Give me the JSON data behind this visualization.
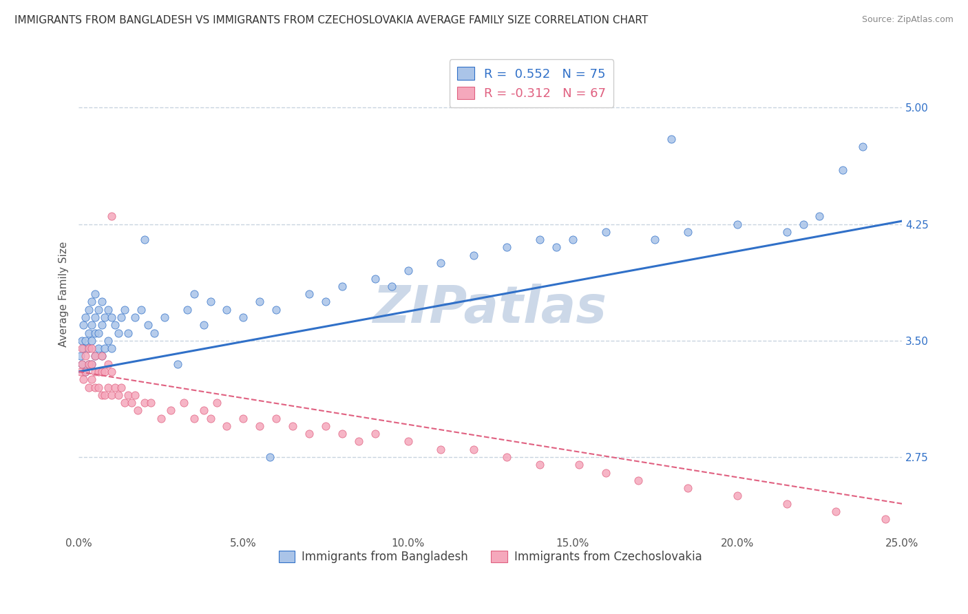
{
  "title": "IMMIGRANTS FROM BANGLADESH VS IMMIGRANTS FROM CZECHOSLOVAKIA AVERAGE FAMILY SIZE CORRELATION CHART",
  "source": "Source: ZipAtlas.com",
  "ylabel": "Average Family Size",
  "xlim": [
    0.0,
    0.25
  ],
  "ylim": [
    2.25,
    5.35
  ],
  "yticks": [
    2.75,
    3.5,
    4.25,
    5.0
  ],
  "xticks": [
    0.0,
    0.05,
    0.1,
    0.15,
    0.2,
    0.25
  ],
  "xticklabels": [
    "0.0%",
    "5.0%",
    "10.0%",
    "15.0%",
    "20.0%",
    "25.0%"
  ],
  "legend_labels": [
    "Immigrants from Bangladesh",
    "Immigrants from Czechoslovakia"
  ],
  "legend_R_bang": "R =  0.552",
  "legend_N_bang": "N = 75",
  "legend_R_czech": "R = -0.312",
  "legend_N_czech": "N = 67",
  "scatter_color_bangladesh": "#aac4e8",
  "scatter_color_czechoslovakia": "#f5a8bc",
  "line_color_bangladesh": "#3070c8",
  "line_color_czechoslovakia": "#e06080",
  "watermark": "ZIPatlas",
  "watermark_color": "#ccd8e8",
  "background_color": "#ffffff",
  "grid_color": "#c8d4e0",
  "title_fontsize": 11,
  "axis_label_fontsize": 11,
  "tick_fontsize": 11,
  "bang_line_x0": 0.0,
  "bang_line_y0": 3.3,
  "bang_line_x1": 0.25,
  "bang_line_y1": 4.27,
  "czech_line_x0": 0.0,
  "czech_line_y0": 3.3,
  "czech_line_x1": 0.25,
  "czech_line_y1": 2.45,
  "bangladesh_x": [
    0.0005,
    0.001,
    0.001,
    0.0015,
    0.0015,
    0.002,
    0.002,
    0.002,
    0.003,
    0.003,
    0.003,
    0.003,
    0.004,
    0.004,
    0.004,
    0.004,
    0.005,
    0.005,
    0.005,
    0.005,
    0.006,
    0.006,
    0.006,
    0.007,
    0.007,
    0.007,
    0.008,
    0.008,
    0.009,
    0.009,
    0.01,
    0.01,
    0.011,
    0.012,
    0.013,
    0.014,
    0.015,
    0.017,
    0.019,
    0.021,
    0.023,
    0.026,
    0.03,
    0.033,
    0.038,
    0.04,
    0.045,
    0.05,
    0.055,
    0.06,
    0.07,
    0.075,
    0.08,
    0.09,
    0.095,
    0.1,
    0.11,
    0.12,
    0.13,
    0.14,
    0.15,
    0.16,
    0.175,
    0.185,
    0.2,
    0.215,
    0.22,
    0.225,
    0.232,
    0.238,
    0.18,
    0.145,
    0.058,
    0.035,
    0.02
  ],
  "bangladesh_y": [
    3.4,
    3.35,
    3.5,
    3.45,
    3.6,
    3.3,
    3.5,
    3.65,
    3.35,
    3.45,
    3.55,
    3.7,
    3.35,
    3.5,
    3.6,
    3.75,
    3.4,
    3.55,
    3.65,
    3.8,
    3.45,
    3.55,
    3.7,
    3.4,
    3.6,
    3.75,
    3.45,
    3.65,
    3.5,
    3.7,
    3.45,
    3.65,
    3.6,
    3.55,
    3.65,
    3.7,
    3.55,
    3.65,
    3.7,
    3.6,
    3.55,
    3.65,
    3.35,
    3.7,
    3.6,
    3.75,
    3.7,
    3.65,
    3.75,
    3.7,
    3.8,
    3.75,
    3.85,
    3.9,
    3.85,
    3.95,
    4.0,
    4.05,
    4.1,
    4.15,
    4.15,
    4.2,
    4.15,
    4.2,
    4.25,
    4.2,
    4.25,
    4.3,
    4.6,
    4.75,
    4.8,
    4.1,
    2.75,
    3.8,
    4.15
  ],
  "czechoslovakia_x": [
    0.0005,
    0.001,
    0.001,
    0.0015,
    0.002,
    0.002,
    0.003,
    0.003,
    0.003,
    0.004,
    0.004,
    0.004,
    0.005,
    0.005,
    0.005,
    0.006,
    0.006,
    0.007,
    0.007,
    0.007,
    0.008,
    0.008,
    0.009,
    0.009,
    0.01,
    0.01,
    0.011,
    0.012,
    0.013,
    0.014,
    0.015,
    0.016,
    0.017,
    0.018,
    0.02,
    0.022,
    0.025,
    0.028,
    0.032,
    0.035,
    0.038,
    0.04,
    0.042,
    0.045,
    0.05,
    0.055,
    0.06,
    0.065,
    0.07,
    0.075,
    0.08,
    0.085,
    0.09,
    0.1,
    0.11,
    0.12,
    0.13,
    0.14,
    0.152,
    0.16,
    0.17,
    0.185,
    0.2,
    0.215,
    0.23,
    0.245,
    0.01
  ],
  "czechoslovakia_y": [
    3.3,
    3.35,
    3.45,
    3.25,
    3.3,
    3.4,
    3.2,
    3.35,
    3.45,
    3.25,
    3.35,
    3.45,
    3.2,
    3.3,
    3.4,
    3.2,
    3.3,
    3.15,
    3.3,
    3.4,
    3.15,
    3.3,
    3.2,
    3.35,
    3.15,
    3.3,
    3.2,
    3.15,
    3.2,
    3.1,
    3.15,
    3.1,
    3.15,
    3.05,
    3.1,
    3.1,
    3.0,
    3.05,
    3.1,
    3.0,
    3.05,
    3.0,
    3.1,
    2.95,
    3.0,
    2.95,
    3.0,
    2.95,
    2.9,
    2.95,
    2.9,
    2.85,
    2.9,
    2.85,
    2.8,
    2.8,
    2.75,
    2.7,
    2.7,
    2.65,
    2.6,
    2.55,
    2.5,
    2.45,
    2.4,
    2.35,
    4.3
  ]
}
